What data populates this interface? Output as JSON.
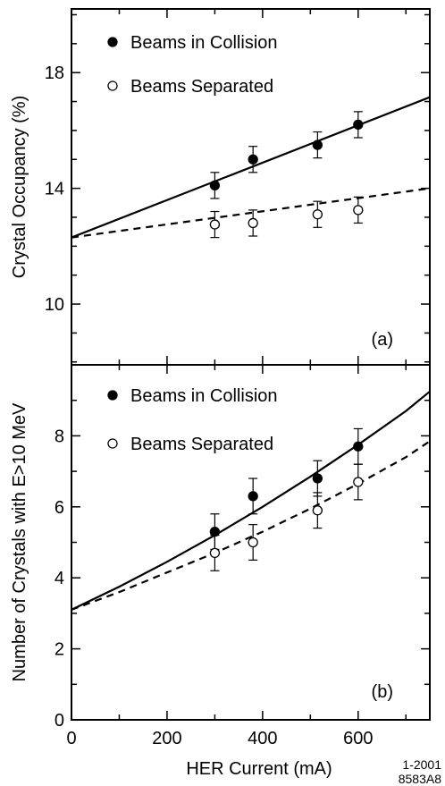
{
  "figure": {
    "xlabel": "HER Current (mA)",
    "code_line1": "1-2001",
    "code_line2": "8583A8"
  },
  "chart_data": [
    {
      "type": "scatter",
      "panel_label": "(a)",
      "xlabel": "HER Current (mA)",
      "ylabel": "Crystal Occupancy (%)",
      "xlim": [
        0,
        750
      ],
      "ylim": [
        7.9,
        20.2
      ],
      "x_ticks": [
        0,
        200,
        400,
        600
      ],
      "y_ticks": [
        10,
        14,
        18
      ],
      "y_tick_labels": [
        "10",
        "14",
        "18"
      ],
      "legend_position": "top-left",
      "series": [
        {
          "name": "Beams in Collision",
          "marker": "filled-circle",
          "x": [
            300,
            380,
            515,
            600
          ],
          "y": [
            14.1,
            15.0,
            15.5,
            16.2
          ],
          "err": [
            0.45,
            0.45,
            0.45,
            0.45
          ],
          "fit": {
            "style": "solid",
            "x": [
              0,
              750
            ],
            "y": [
              12.3,
              17.15
            ]
          }
        },
        {
          "name": "Beams Separated",
          "marker": "open-circle",
          "x": [
            300,
            380,
            515,
            600
          ],
          "y": [
            12.75,
            12.8,
            13.1,
            13.25
          ],
          "err": [
            0.45,
            0.45,
            0.45,
            0.45
          ],
          "fit": {
            "style": "dashed",
            "x": [
              0,
              750
            ],
            "y": [
              12.3,
              14.0
            ]
          }
        }
      ]
    },
    {
      "type": "scatter",
      "panel_label": "(b)",
      "xlabel": "HER Current (mA)",
      "ylabel": "Number of Crystals with E>10 MeV",
      "xlim": [
        0,
        750
      ],
      "ylim": [
        0,
        10
      ],
      "x_ticks": [
        0,
        200,
        400,
        600
      ],
      "x_tick_labels": [
        "0",
        "200",
        "400",
        "600"
      ],
      "y_ticks": [
        0,
        2,
        4,
        6,
        8
      ],
      "y_tick_labels": [
        "0",
        "2",
        "4",
        "6",
        "8"
      ],
      "legend_position": "top-left",
      "series": [
        {
          "name": "Beams in Collision",
          "marker": "filled-circle",
          "x": [
            300,
            380,
            515,
            600
          ],
          "y": [
            5.3,
            6.3,
            6.8,
            7.7
          ],
          "err": [
            0.5,
            0.5,
            0.5,
            0.5
          ],
          "fit": {
            "style": "solid",
            "x": [
              0,
              100,
              200,
              300,
              400,
              500,
              600,
              700,
              750
            ],
            "y": [
              3.1,
              3.75,
              4.45,
              5.2,
              6.0,
              6.85,
              7.75,
              8.7,
              9.25
            ]
          }
        },
        {
          "name": "Beams Separated",
          "marker": "open-circle",
          "x": [
            300,
            380,
            515,
            600
          ],
          "y": [
            4.7,
            5.0,
            5.9,
            6.7
          ],
          "err": [
            0.5,
            0.5,
            0.5,
            0.5
          ],
          "fit": {
            "style": "dashed",
            "x": [
              0,
              100,
              200,
              300,
              400,
              500,
              600,
              700,
              750
            ],
            "y": [
              3.1,
              3.6,
              4.15,
              4.7,
              5.3,
              5.95,
              6.65,
              7.4,
              7.85
            ]
          }
        }
      ]
    }
  ]
}
